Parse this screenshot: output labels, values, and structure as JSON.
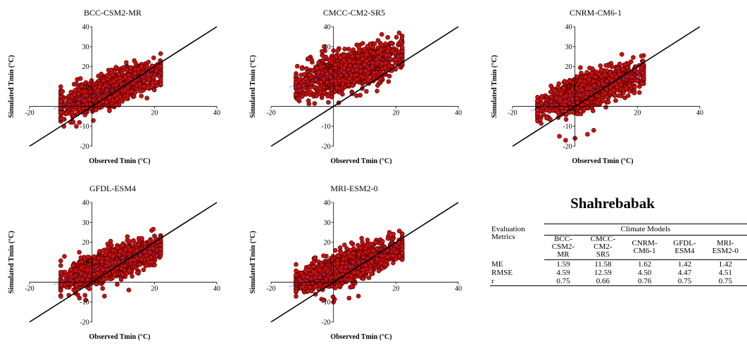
{
  "chart_data": [
    {
      "type": "scatter",
      "title": "BCC-CSM2-MR",
      "xlabel": "Observed Tmin  (°C)",
      "ylabel": "Simulated Tmin (°C)",
      "xlim": [
        -20,
        40
      ],
      "ylim": [
        -20,
        40
      ],
      "xticks": [
        "-20",
        "20",
        "40"
      ],
      "yticks": [
        "40",
        "30",
        "20",
        "10",
        "-10",
        "-20"
      ],
      "reference_line": "1:1",
      "point_color": "#cc1111",
      "cloud": {
        "x_range": [
          -10,
          22
        ],
        "slope": 0.55,
        "intercept": 5.5,
        "spread": 3.8,
        "n": 1500
      },
      "outliers": [
        [
          -9,
          -10
        ],
        [
          -5,
          -10
        ],
        [
          -6,
          -8
        ],
        [
          12,
          12
        ]
      ]
    },
    {
      "type": "scatter",
      "title": "CMCC-CM2-SR5",
      "xlabel": "Observed Tmin  (°C)",
      "ylabel": "Simulated Tmin (°C)",
      "xlim": [
        -20,
        40
      ],
      "ylim": [
        -20,
        40
      ],
      "xticks": [
        "-20",
        "20",
        "40"
      ],
      "yticks": [
        "40",
        "30",
        "20",
        "10",
        "-10",
        "-20"
      ],
      "reference_line": "1:1",
      "point_color": "#cc1111",
      "cloud": {
        "x_range": [
          -12,
          22
        ],
        "slope": 0.45,
        "intercept": 16,
        "spread": 4.5,
        "n": 1500
      },
      "outliers": [
        [
          -10,
          5
        ],
        [
          -8,
          24
        ],
        [
          -3,
          30
        ],
        [
          0,
          28
        ]
      ]
    },
    {
      "type": "scatter",
      "title": "CNRM-CM6-1",
      "xlabel": "Observed Tmin  (°C)",
      "ylabel": "Simulated Tmin (°C)",
      "xlim": [
        -20,
        40
      ],
      "ylim": [
        -20,
        40
      ],
      "xticks": [
        "-20",
        "20",
        "40"
      ],
      "yticks": [
        "40",
        "30",
        "20",
        "10",
        "-10",
        "-20"
      ],
      "reference_line": "1:1",
      "point_color": "#cc1111",
      "cloud": {
        "x_range": [
          -12,
          22
        ],
        "slope": 0.55,
        "intercept": 5.5,
        "spread": 3.8,
        "n": 1500
      },
      "outliers": [
        [
          -5,
          -15
        ],
        [
          -3,
          -17
        ],
        [
          0,
          -16
        ],
        [
          4,
          -14
        ],
        [
          6,
          -12
        ]
      ]
    },
    {
      "type": "scatter",
      "title": "GFDL-ESM4",
      "xlabel": "Observed Tmin  (°C)",
      "ylabel": "Simulated Tmin (°C)",
      "xlim": [
        -20,
        40
      ],
      "ylim": [
        -20,
        40
      ],
      "xticks": [
        "-20",
        "20",
        "40"
      ],
      "yticks": [
        "40",
        "30",
        "20",
        "10",
        "-10",
        "-20"
      ],
      "reference_line": "1:1",
      "point_color": "#cc1111",
      "cloud": {
        "x_range": [
          -10,
          22
        ],
        "slope": 0.55,
        "intercept": 5.5,
        "spread": 3.6,
        "n": 1500
      },
      "outliers": [
        [
          -4,
          -8
        ],
        [
          -2,
          -9
        ],
        [
          4,
          -7
        ]
      ]
    },
    {
      "type": "scatter",
      "title": "MRI-ESM2-0",
      "xlabel": "Observed Tmin  (°C)",
      "ylabel": "Simulated Tmin (°C)",
      "xlim": [
        -20,
        40
      ],
      "ylim": [
        -20,
        40
      ],
      "xticks": [
        "-20",
        "20",
        "40"
      ],
      "yticks": [
        "40",
        "30",
        "20",
        "10",
        "-10",
        "-20"
      ],
      "reference_line": "1:1",
      "point_color": "#cc1111",
      "cloud": {
        "x_range": [
          -12,
          22
        ],
        "slope": 0.55,
        "intercept": 5.5,
        "spread": 3.6,
        "n": 1500
      },
      "outliers": [
        [
          -12,
          0
        ],
        [
          -3,
          -9
        ],
        [
          0,
          -10
        ],
        [
          5,
          -8
        ],
        [
          8,
          -7
        ]
      ]
    }
  ],
  "station_title": "Shahrebabak",
  "metrics_table": {
    "group_header": "Climate  Models",
    "row_header": [
      "Evaluation",
      "Metrics"
    ],
    "models": [
      [
        "BCC-",
        "CSM2-",
        "MR"
      ],
      [
        "CMCC-",
        "CM2-",
        "SR5"
      ],
      [
        "CNRM-",
        "CM6-1"
      ],
      [
        "GFDL-",
        "ESM4"
      ],
      [
        "MRI-",
        "ESM2-0"
      ]
    ],
    "rows": [
      {
        "metric": "ME",
        "values": [
          "1.59",
          "11.58",
          "1.62",
          "1.42",
          "1.42"
        ]
      },
      {
        "metric": "RMSE",
        "values": [
          "4.59",
          "12.59",
          "4.50",
          "4.47",
          "4.51"
        ]
      },
      {
        "metric": "r",
        "values": [
          "0.75",
          "0.66",
          "0.76",
          "0.75",
          "0.75"
        ]
      }
    ]
  }
}
